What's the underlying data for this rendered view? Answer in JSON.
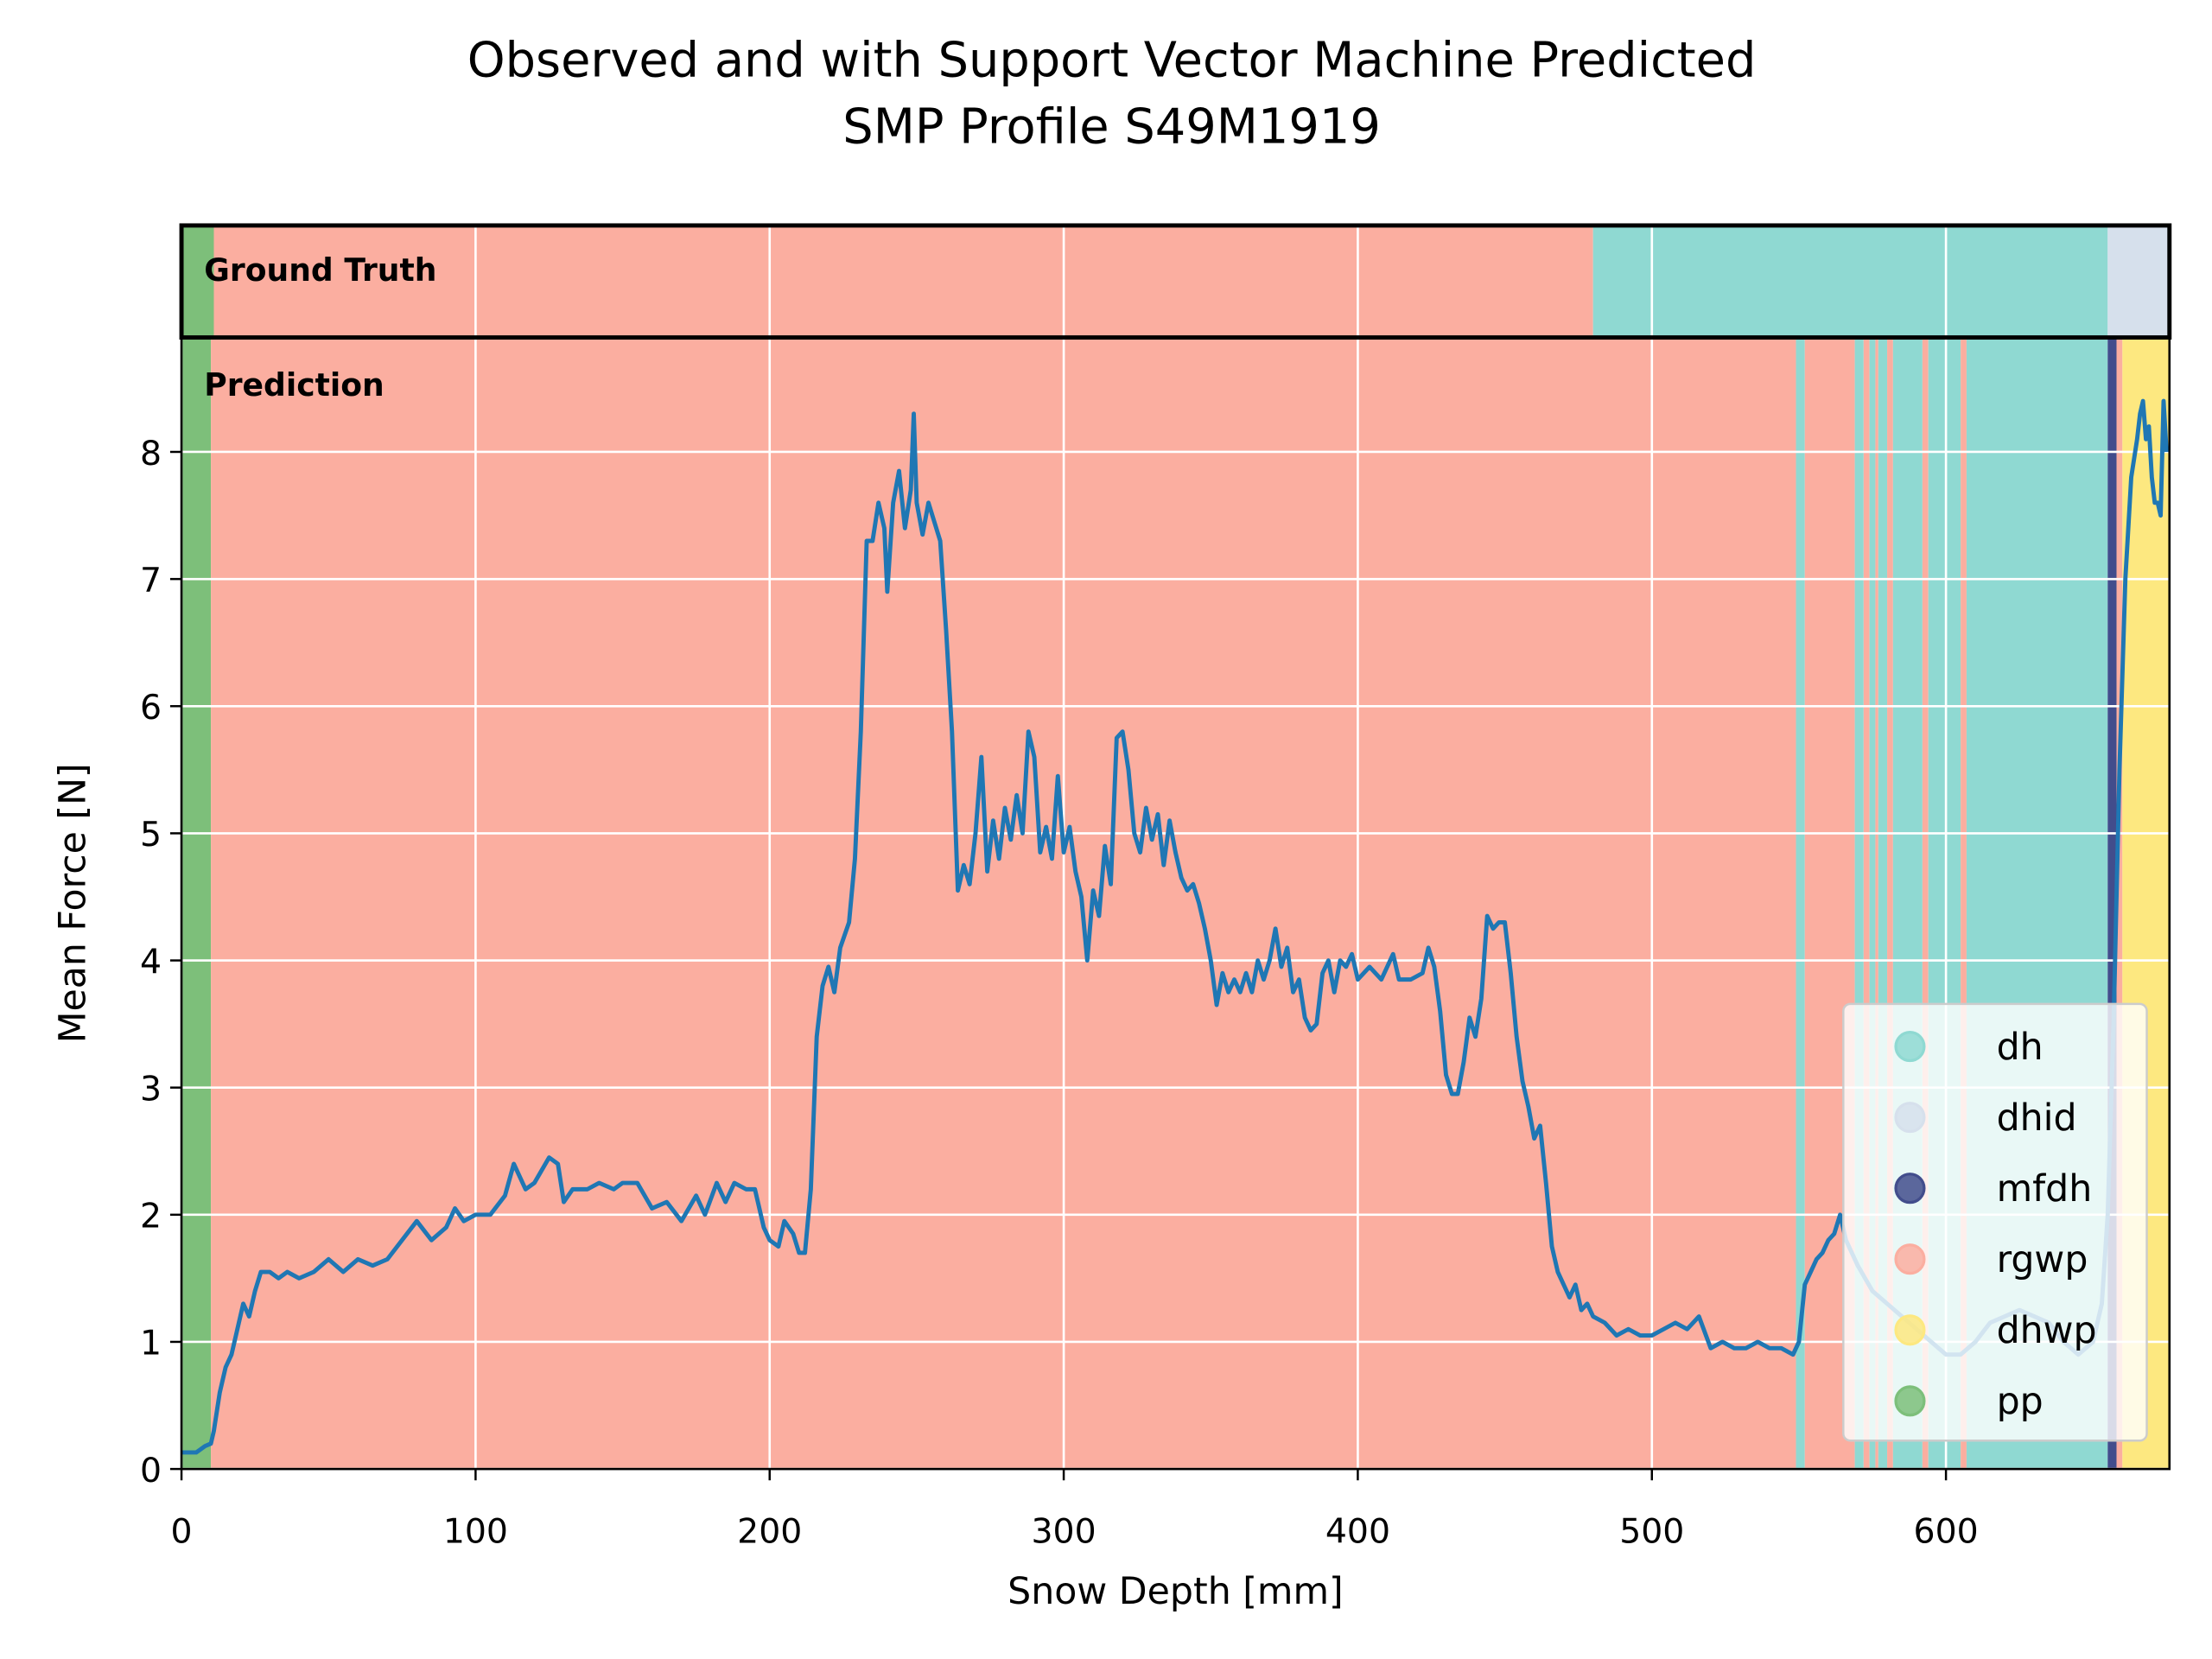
{
  "chart_data": {
    "type": "line",
    "title": [
      "Observed and with Support Vector Machine Predicted",
      "SMP Profile S49M1919"
    ],
    "x_label": "Snow Depth [mm]",
    "y_label": "Mean Force [N]",
    "xlim": [
      0,
      676
    ],
    "ylim": [
      0,
      8.9
    ],
    "xticks": [
      0,
      100,
      200,
      300,
      400,
      500,
      600
    ],
    "yticks": [
      0,
      1,
      2,
      3,
      4,
      5,
      6,
      7,
      8
    ],
    "grid": true,
    "legend_loc": "lower right",
    "classes": [
      {
        "name": "dh",
        "color": "#8fd9d2"
      },
      {
        "name": "dhid",
        "color": "#d6e0ec"
      },
      {
        "name": "mfdh",
        "color": "#424d8c"
      },
      {
        "name": "rgwp",
        "color": "#fbaea0"
      },
      {
        "name": "dhwp",
        "color": "#fde880"
      },
      {
        "name": "pp",
        "color": "#7dbf7a"
      }
    ],
    "ground_truth": {
      "label": "Ground Truth",
      "spans": [
        {
          "class": "pp",
          "start": 0,
          "end": 11
        },
        {
          "class": "rgwp",
          "start": 11,
          "end": 480
        },
        {
          "class": "dh",
          "start": 480,
          "end": 655
        },
        {
          "class": "dhid",
          "start": 655,
          "end": 676
        }
      ]
    },
    "prediction": {
      "label": "Prediction",
      "spans": [
        {
          "class": "pp",
          "start": 0,
          "end": 10
        },
        {
          "class": "rgwp",
          "start": 10,
          "end": 549
        },
        {
          "class": "dh",
          "start": 549,
          "end": 552
        },
        {
          "class": "rgwp",
          "start": 552,
          "end": 569
        },
        {
          "class": "dh",
          "start": 569,
          "end": 572
        },
        {
          "class": "rgwp",
          "start": 572,
          "end": 574
        },
        {
          "class": "dh",
          "start": 574,
          "end": 576
        },
        {
          "class": "rgwp",
          "start": 576,
          "end": 577
        },
        {
          "class": "dh",
          "start": 577,
          "end": 580
        },
        {
          "class": "rgwp",
          "start": 580,
          "end": 582
        },
        {
          "class": "dh",
          "start": 582,
          "end": 592
        },
        {
          "class": "rgwp",
          "start": 592,
          "end": 594
        },
        {
          "class": "dh",
          "start": 594,
          "end": 605
        },
        {
          "class": "rgwp",
          "start": 605,
          "end": 607
        },
        {
          "class": "dh",
          "start": 607,
          "end": 655
        },
        {
          "class": "mfdh",
          "start": 655,
          "end": 658
        },
        {
          "class": "rgwp",
          "start": 658,
          "end": 660
        },
        {
          "class": "dhwp",
          "start": 660,
          "end": 676
        }
      ]
    },
    "series": [
      {
        "color": "#1f77b4",
        "x": [
          0,
          5,
          8,
          10,
          11,
          13,
          15,
          17,
          19,
          21,
          23,
          25,
          27,
          30,
          33,
          36,
          40,
          45,
          50,
          55,
          60,
          65,
          70,
          75,
          80,
          85,
          90,
          93,
          96,
          100,
          105,
          110,
          113,
          117,
          120,
          125,
          128,
          130,
          133,
          138,
          142,
          147,
          150,
          155,
          160,
          165,
          170,
          175,
          178,
          182,
          185,
          188,
          192,
          195,
          198,
          200,
          203,
          205,
          208,
          210,
          212,
          214,
          216,
          218,
          220,
          222,
          224,
          227,
          229,
          231,
          233,
          235,
          237,
          239,
          240,
          242,
          244,
          246,
          248,
          249,
          250,
          252,
          254,
          256,
          258,
          260,
          262,
          264,
          266,
          268,
          270,
          272,
          274,
          276,
          278,
          280,
          282,
          284,
          286,
          288,
          290,
          292,
          294,
          296,
          298,
          300,
          302,
          304,
          306,
          308,
          310,
          312,
          314,
          316,
          318,
          320,
          322,
          324,
          326,
          328,
          330,
          332,
          334,
          336,
          338,
          340,
          342,
          344,
          346,
          348,
          350,
          352,
          354,
          356,
          358,
          360,
          362,
          364,
          366,
          368,
          370,
          372,
          374,
          376,
          378,
          380,
          382,
          384,
          386,
          388,
          390,
          392,
          394,
          396,
          398,
          400,
          404,
          408,
          412,
          414,
          418,
          422,
          424,
          426,
          428,
          430,
          432,
          434,
          436,
          438,
          440,
          442,
          444,
          446,
          448,
          450,
          452,
          454,
          456,
          458,
          460,
          462,
          464,
          466,
          468,
          470,
          472,
          474,
          476,
          478,
          480,
          484,
          488,
          492,
          496,
          500,
          504,
          508,
          512,
          516,
          520,
          524,
          528,
          532,
          536,
          540,
          544,
          548,
          550,
          552,
          554,
          556,
          558,
          560,
          562,
          564,
          566,
          570,
          575,
          580,
          585,
          590,
          595,
          600,
          605,
          610,
          615,
          620,
          625,
          630,
          635,
          640,
          645,
          650,
          653,
          655,
          657,
          659,
          661,
          663,
          665,
          666,
          667,
          668,
          669,
          670,
          671,
          672,
          673,
          674,
          675
        ],
        "values": [
          0.13,
          0.13,
          0.18,
          0.2,
          0.3,
          0.6,
          0.8,
          0.9,
          1.1,
          1.3,
          1.2,
          1.4,
          1.55,
          1.55,
          1.5,
          1.55,
          1.5,
          1.55,
          1.65,
          1.55,
          1.65,
          1.6,
          1.65,
          1.8,
          1.95,
          1.8,
          1.9,
          2.05,
          1.95,
          2.0,
          2.0,
          2.15,
          2.4,
          2.2,
          2.25,
          2.45,
          2.4,
          2.1,
          2.2,
          2.2,
          2.25,
          2.2,
          2.25,
          2.25,
          2.05,
          2.1,
          1.95,
          2.15,
          2.0,
          2.25,
          2.1,
          2.25,
          2.2,
          2.2,
          1.9,
          1.8,
          1.75,
          1.95,
          1.85,
          1.7,
          1.7,
          2.2,
          3.4,
          3.8,
          3.95,
          3.75,
          4.1,
          4.3,
          4.8,
          5.8,
          7.3,
          7.3,
          7.6,
          7.4,
          6.9,
          7.6,
          7.85,
          7.4,
          7.7,
          8.3,
          7.6,
          7.35,
          7.6,
          7.45,
          7.3,
          6.6,
          5.8,
          4.55,
          4.75,
          4.6,
          5.0,
          5.6,
          4.7,
          5.1,
          4.8,
          5.2,
          4.95,
          5.3,
          5.0,
          5.8,
          5.6,
          4.85,
          5.05,
          4.8,
          5.45,
          4.85,
          5.05,
          4.7,
          4.5,
          4.0,
          4.55,
          4.35,
          4.9,
          4.6,
          5.75,
          5.8,
          5.5,
          5.0,
          4.85,
          5.2,
          4.95,
          5.15,
          4.75,
          5.1,
          4.85,
          4.65,
          4.55,
          4.6,
          4.45,
          4.25,
          4.0,
          3.65,
          3.9,
          3.75,
          3.85,
          3.75,
          3.9,
          3.75,
          4.0,
          3.85,
          4.0,
          4.25,
          3.95,
          4.1,
          3.75,
          3.85,
          3.55,
          3.45,
          3.5,
          3.9,
          4.0,
          3.75,
          4.0,
          3.95,
          4.05,
          3.85,
          3.95,
          3.85,
          4.05,
          3.85,
          3.85,
          3.9,
          4.1,
          3.95,
          3.6,
          3.1,
          2.95,
          2.95,
          3.2,
          3.55,
          3.4,
          3.7,
          4.35,
          4.25,
          4.3,
          4.3,
          3.9,
          3.4,
          3.05,
          2.85,
          2.6,
          2.7,
          2.25,
          1.75,
          1.55,
          1.45,
          1.35,
          1.45,
          1.25,
          1.3,
          1.2,
          1.15,
          1.05,
          1.1,
          1.05,
          1.05,
          1.1,
          1.15,
          1.1,
          1.2,
          0.95,
          1.0,
          0.95,
          0.95,
          1.0,
          0.95,
          0.95,
          0.9,
          1.0,
          1.45,
          1.55,
          1.65,
          1.7,
          1.8,
          1.85,
          2.0,
          1.8,
          1.6,
          1.4,
          1.3,
          1.2,
          1.1,
          1.0,
          0.9,
          0.9,
          1.0,
          1.15,
          1.2,
          1.25,
          1.2,
          1.15,
          1.0,
          0.9,
          1.0,
          1.3,
          2.0,
          3.5,
          5.5,
          7.0,
          7.8,
          8.1,
          8.3,
          8.4,
          8.1,
          8.2,
          7.8,
          7.6,
          7.6,
          7.5,
          8.4,
          8.0
        ]
      }
    ]
  }
}
